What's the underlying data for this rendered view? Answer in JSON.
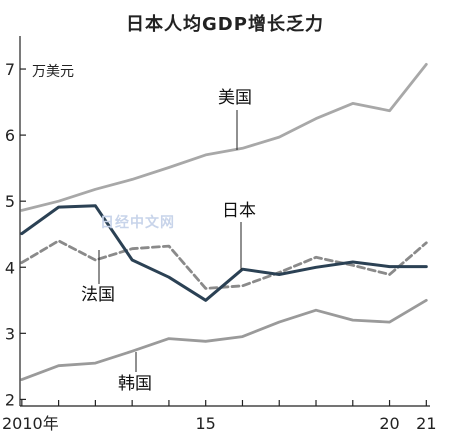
{
  "chart_data": {
    "type": "line",
    "title": "日本人均GDP增长乏力",
    "y_unit": "万美元",
    "x": [
      2010,
      2011,
      2012,
      2013,
      2014,
      2015,
      2016,
      2017,
      2018,
      2019,
      2020,
      2021
    ],
    "x_tick_labels": [
      {
        "x": 2010,
        "label": "2010年"
      },
      {
        "x": 2015,
        "label": "15"
      },
      {
        "x": 2020,
        "label": "20"
      },
      {
        "x": 2021,
        "label": "21"
      }
    ],
    "y_ticks": [
      2,
      3,
      4,
      5,
      6,
      7
    ],
    "ylim": [
      1.9,
      7.5
    ],
    "xlim": [
      2009.95,
      2021.1
    ],
    "series": [
      {
        "name": "美国",
        "style": "solid",
        "color": "#a8a8a8",
        "values": [
          4.86,
          5.0,
          5.18,
          5.33,
          5.51,
          5.7,
          5.8,
          5.97,
          6.25,
          6.48,
          6.37,
          7.07
        ]
      },
      {
        "name": "日本",
        "style": "solid",
        "color": "#2b4154",
        "values": [
          4.51,
          4.91,
          4.93,
          4.11,
          3.85,
          3.5,
          3.97,
          3.89,
          4.0,
          4.08,
          4.01,
          4.01
        ]
      },
      {
        "name": "法国",
        "style": "dashed",
        "color": "#8a8a8a",
        "values": [
          4.07,
          4.4,
          4.11,
          4.28,
          4.32,
          3.68,
          3.72,
          3.92,
          4.15,
          4.03,
          3.89,
          4.37
        ]
      },
      {
        "name": "韩国",
        "style": "solid",
        "color": "#9a9a9a",
        "values": [
          2.3,
          2.51,
          2.55,
          2.73,
          2.92,
          2.88,
          2.95,
          3.17,
          3.35,
          3.2,
          3.17,
          3.5
        ]
      }
    ],
    "grid": false,
    "legend": "inline labels"
  },
  "watermark": "日经中文网"
}
